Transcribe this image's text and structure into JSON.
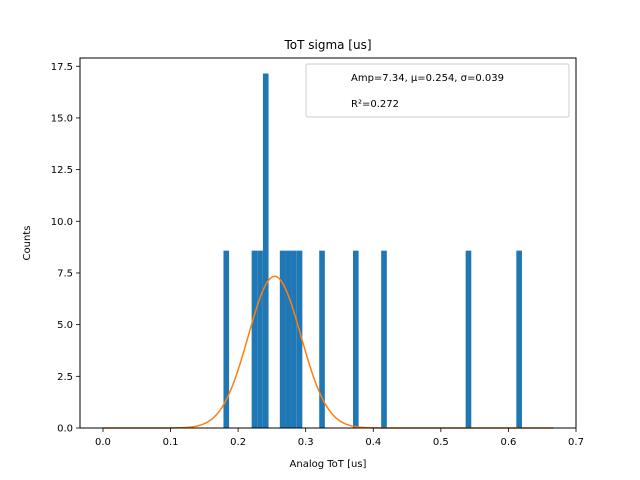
{
  "chart_data": {
    "type": "bar",
    "title": "ToT sigma [us]",
    "xlabel": "Analog ToT [us]",
    "ylabel": "Counts",
    "xlim": [
      -0.034,
      0.7
    ],
    "ylim": [
      0,
      17.9
    ],
    "xticks": [
      0.0,
      0.1,
      0.2,
      0.3,
      0.4,
      0.5,
      0.6,
      0.7
    ],
    "xtick_labels": [
      "0.0",
      "0.1",
      "0.2",
      "0.3",
      "0.4",
      "0.5",
      "0.6",
      "0.7"
    ],
    "yticks": [
      0.0,
      2.5,
      5.0,
      7.5,
      10.0,
      12.5,
      15.0,
      17.5
    ],
    "ytick_labels": [
      "0.0",
      "2.5",
      "5.0",
      "7.5",
      "10.0",
      "12.5",
      "15.0",
      "17.5"
    ],
    "bin_width": 0.00833,
    "bar_color": "#1f77b4",
    "bars": [
      {
        "x": 0.1783,
        "y": 8.58
      },
      {
        "x": 0.22,
        "y": 8.58
      },
      {
        "x": 0.2283,
        "y": 8.58
      },
      {
        "x": 0.2367,
        "y": 17.15
      },
      {
        "x": 0.2617,
        "y": 8.58
      },
      {
        "x": 0.27,
        "y": 8.58
      },
      {
        "x": 0.2783,
        "y": 8.58
      },
      {
        "x": 0.2867,
        "y": 8.58
      },
      {
        "x": 0.32,
        "y": 8.58
      },
      {
        "x": 0.37,
        "y": 8.58
      },
      {
        "x": 0.4117,
        "y": 8.58
      },
      {
        "x": 0.5367,
        "y": 8.58
      },
      {
        "x": 0.6117,
        "y": 8.58
      }
    ],
    "fit": {
      "type": "gaussian",
      "amp": 7.34,
      "mu": 0.254,
      "sigma": 0.039,
      "x_range": [
        0.0,
        0.667
      ],
      "color": "#ff7f0e"
    },
    "legend": {
      "placement": "top-right",
      "entries": [
        {
          "text": "Amp=7.34, μ=0.254, σ=0.039"
        },
        {
          "text": "R²=0.272"
        }
      ]
    }
  }
}
